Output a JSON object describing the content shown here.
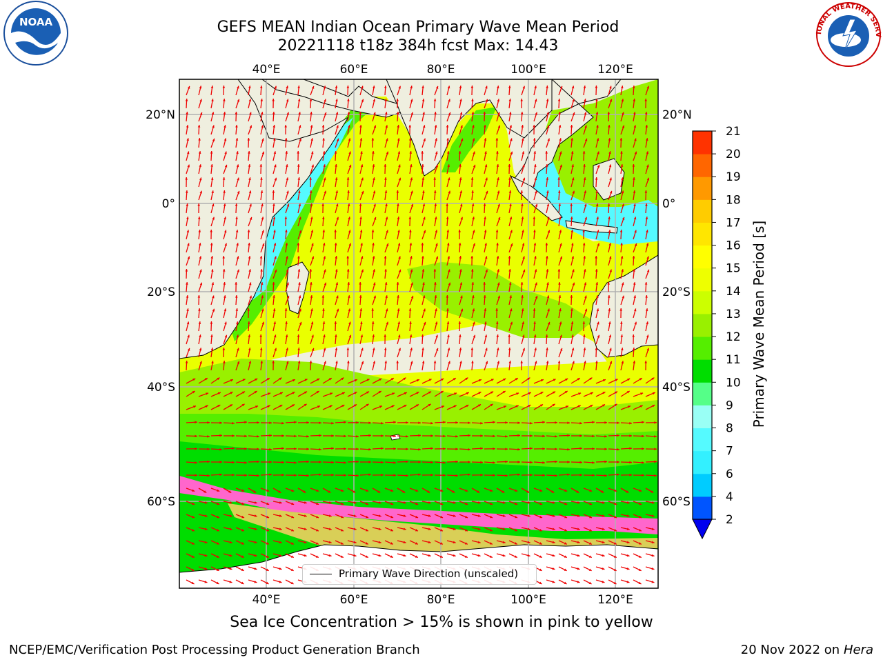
{
  "header": {
    "title_line1": "GEFS MEAN Indian Ocean Primary Wave Mean Period",
    "title_line2": "20221118 t18z 384h fcst   Max: 14.43"
  },
  "map": {
    "lon_labels": [
      "40°E",
      "60°E",
      "80°E",
      "100°E",
      "120°E"
    ],
    "lat_labels": [
      "20°N",
      "0°",
      "20°S",
      "40°S",
      "60°S"
    ],
    "legend_label": "Primary Wave Direction (unscaled)"
  },
  "colorbar": {
    "title": "Primary Wave Mean Period [s]",
    "tick_labels": [
      "2",
      "4",
      "6",
      "7",
      "8",
      "9",
      "10",
      "11",
      "12",
      "13",
      "14",
      "15",
      "16",
      "17",
      "18",
      "19",
      "20",
      "21"
    ],
    "colors": [
      "#0055ff",
      "#00ccff",
      "#33f0ff",
      "#55faff",
      "#99fff5",
      "#55ff88",
      "#00dd00",
      "#55ee00",
      "#99f000",
      "#ccff00",
      "#eeff00",
      "#ffff00",
      "#ffe600",
      "#ffcc00",
      "#ff9900",
      "#ff6600",
      "#ff3300",
      "#ff0000"
    ],
    "extend_color": "#0000ee"
  },
  "footer": {
    "caption": "Sea Ice Concentration > 15% is shown in pink to yellow",
    "credit": "NCEP/EMC/Verification Post Processing Product Generation Branch",
    "date": "20 Nov 2022 on",
    "host": "Hera"
  },
  "logos": {
    "noaa_text": "NOAA",
    "nws_text": "NATIONAL WEATHER SERVICE"
  }
}
